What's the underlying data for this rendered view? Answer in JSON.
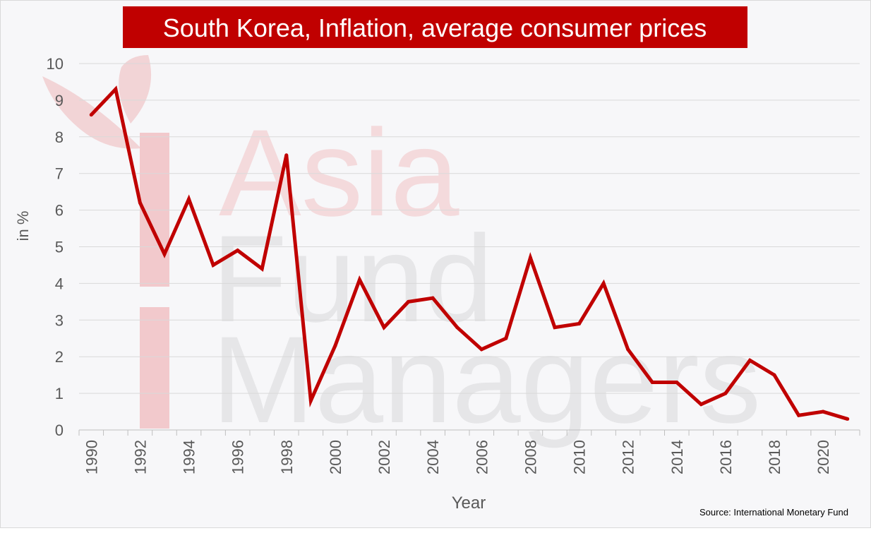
{
  "chart_data": {
    "type": "line",
    "title": "South Korea, Inflation, average consumer prices",
    "xlabel": "Year",
    "ylabel": "in %",
    "source": "Source: International Monetary Fund",
    "watermark": [
      "Asia",
      "Fund",
      "Managers"
    ],
    "ylim": [
      0,
      10
    ],
    "yticks": [
      0,
      1,
      2,
      3,
      4,
      5,
      6,
      7,
      8,
      9,
      10
    ],
    "xticks": [
      "1990",
      "1992",
      "1994",
      "1996",
      "1998",
      "2000",
      "2002",
      "2004",
      "2006",
      "2008",
      "2010",
      "2012",
      "2014",
      "2016",
      "2018",
      "2020"
    ],
    "grid": true,
    "series": [
      {
        "color": "#c00000",
        "x": [
          1990,
          1991,
          1992,
          1993,
          1994,
          1995,
          1996,
          1997,
          1998,
          1999,
          2000,
          2001,
          2002,
          2003,
          2004,
          2005,
          2006,
          2007,
          2008,
          2009,
          2010,
          2011,
          2012,
          2013,
          2014,
          2015,
          2016,
          2017,
          2018,
          2019,
          2020,
          2021
        ],
        "values": [
          8.6,
          9.3,
          6.2,
          4.8,
          6.3,
          4.5,
          4.9,
          4.4,
          7.5,
          0.8,
          2.3,
          4.1,
          2.8,
          3.5,
          3.6,
          2.8,
          2.2,
          2.5,
          4.7,
          2.8,
          2.9,
          4.0,
          2.2,
          1.3,
          1.3,
          0.7,
          1.0,
          1.9,
          1.5,
          0.4,
          0.5,
          0.3
        ]
      }
    ]
  },
  "colors": {
    "title_bg": "#c00000",
    "title_text": "#ffffff",
    "line": "#c00000",
    "grid": "#d9d9d9",
    "axis_text": "#595959"
  }
}
